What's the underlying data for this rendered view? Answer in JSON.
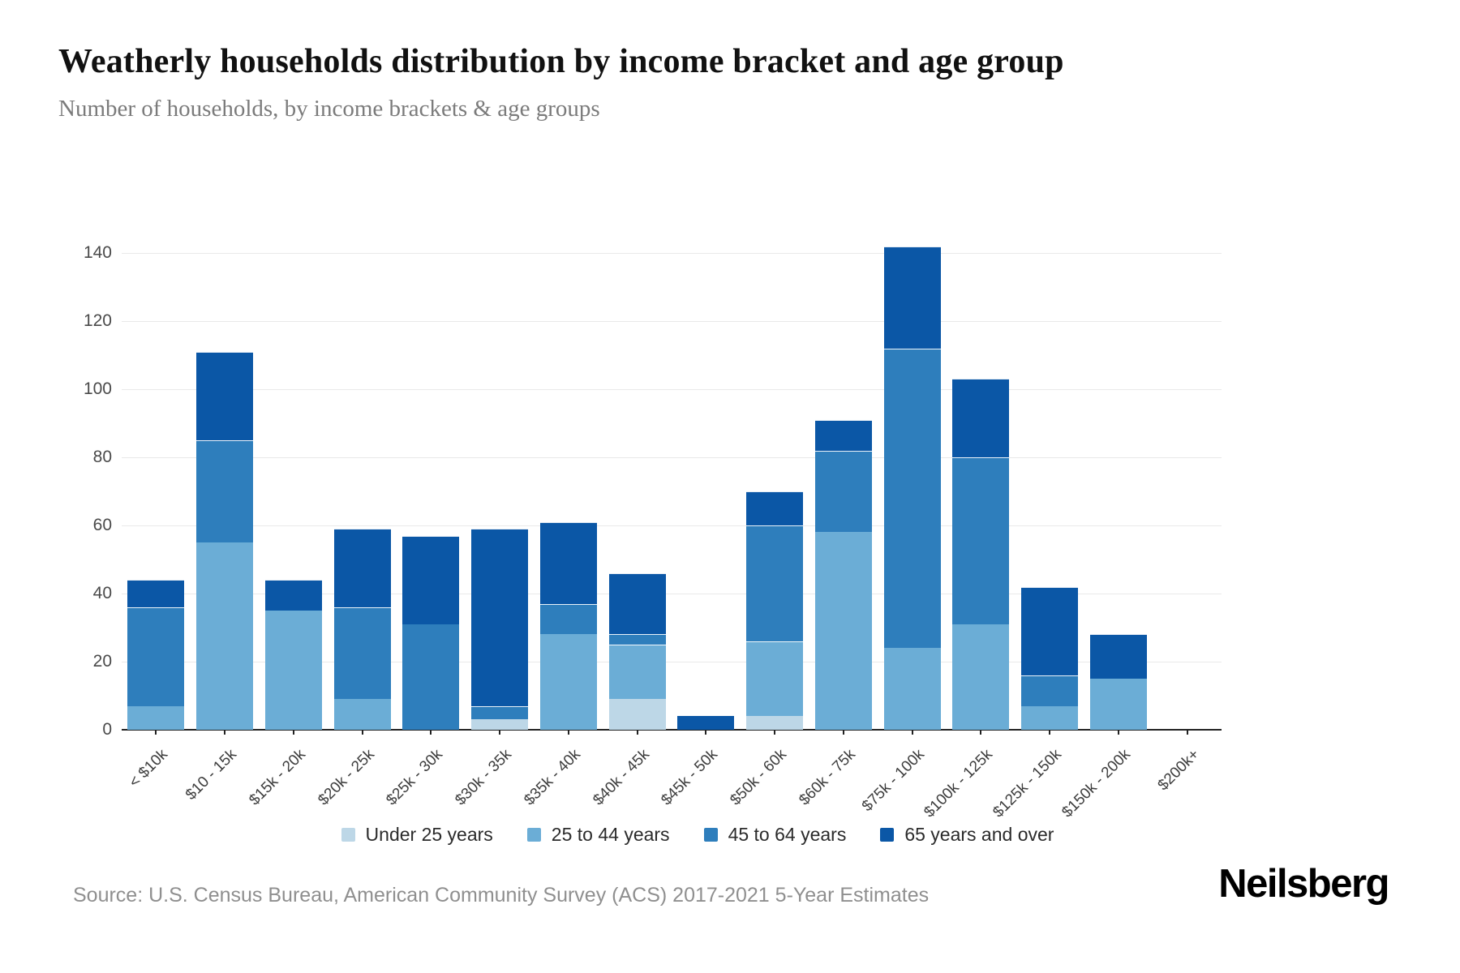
{
  "header": {
    "title": "Weatherly households distribution by income bracket and age group",
    "subtitle": "Number of households, by income brackets & age groups"
  },
  "chart_data": {
    "type": "bar",
    "stacked": true,
    "title": "Weatherly households distribution by income bracket and age group",
    "subtitle": "Number of households, by income brackets & age groups",
    "xlabel": "",
    "ylabel": "",
    "ylim": [
      0,
      150
    ],
    "yticks": [
      0,
      20,
      40,
      60,
      80,
      100,
      120,
      140
    ],
    "grid": true,
    "legend_position": "bottom",
    "categories": [
      "< $10k",
      "$10 - 15k",
      "$15k - 20k",
      "$20k - 25k",
      "$25k - 30k",
      "$30k - 35k",
      "$35k - 40k",
      "$40k - 45k",
      "$45k - 50k",
      "$50k - 60k",
      "$60k - 75k",
      "$75k - 100k",
      "$100k - 125k",
      "$125k - 150k",
      "$150k - 200k",
      "$200k+"
    ],
    "series": [
      {
        "name": "Under 25 years",
        "color": "#bdd7e7",
        "values": [
          0,
          0,
          0,
          0,
          0,
          3,
          0,
          9,
          0,
          4,
          0,
          0,
          0,
          0,
          0,
          0
        ]
      },
      {
        "name": "25 to 44 years",
        "color": "#6badd6",
        "values": [
          7,
          55,
          35,
          9,
          0,
          0,
          28,
          16,
          0,
          22,
          58,
          24,
          31,
          7,
          15,
          0
        ]
      },
      {
        "name": "45 to 64 years",
        "color": "#2e7ebc",
        "values": [
          29,
          30,
          0,
          27,
          31,
          4,
          9,
          3,
          0,
          34,
          24,
          88,
          49,
          9,
          0,
          0
        ]
      },
      {
        "name": "65 years and over",
        "color": "#0b57a6",
        "values": [
          8,
          26,
          9,
          23,
          26,
          52,
          24,
          18,
          4,
          10,
          9,
          30,
          23,
          26,
          13,
          0
        ]
      }
    ],
    "totals": [
      44,
      111,
      44,
      59,
      57,
      59,
      61,
      46,
      4,
      70,
      91,
      142,
      103,
      42,
      28,
      0
    ]
  },
  "footer": {
    "source": "Source: U.S. Census Bureau, American Community Survey (ACS) 2017-2021 5-Year Estimates",
    "logo": "Neilsberg"
  }
}
